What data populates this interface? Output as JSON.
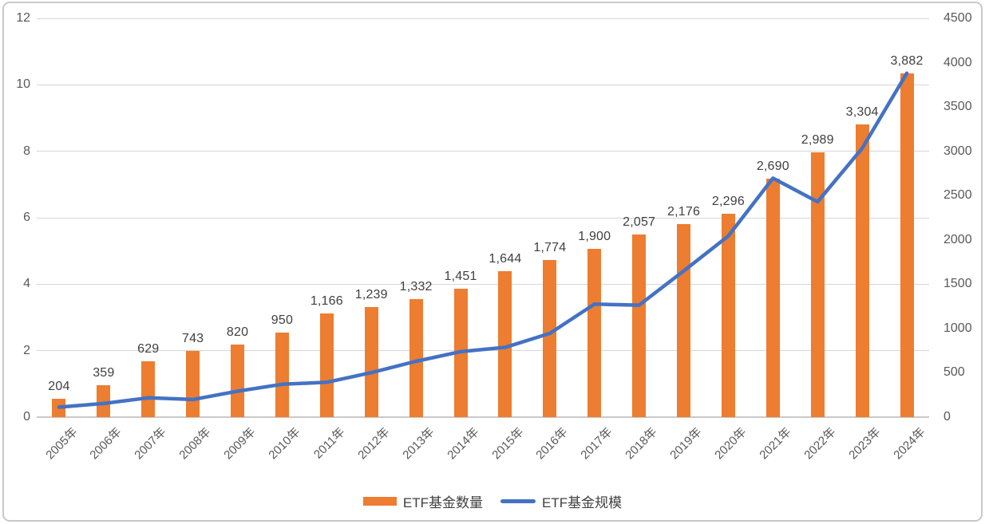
{
  "colors": {
    "bar": "#ED7D31",
    "line": "#4472C4",
    "grid": "#D6D6D6",
    "baseline": "#C9C9C9",
    "axis_text": "#595959",
    "label_text": "#404040",
    "border": "#C9C9C9",
    "background": "#FFFFFF"
  },
  "legend": {
    "bar_label": "ETF基金数量",
    "line_label": "ETF基金规模"
  },
  "chart_data": {
    "type": "combo-bar-line",
    "title": "",
    "categories": [
      "2005年",
      "2006年",
      "2007年",
      "2008年",
      "2009年",
      "2010年",
      "2011年",
      "2012年",
      "2013年",
      "2014年",
      "2015年",
      "2016年",
      "2017年",
      "2018年",
      "2019年",
      "2020年",
      "2021年",
      "2022年",
      "2023年",
      "2024年"
    ],
    "series": [
      {
        "name": "ETF基金数量",
        "type": "bar",
        "axis": "right",
        "color": "#ED7D31",
        "values": [
          204,
          359,
          629,
          743,
          820,
          950,
          1166,
          1239,
          1332,
          1451,
          1644,
          1774,
          1900,
          2057,
          2176,
          2296,
          2690,
          2989,
          3304,
          3882
        ],
        "labels": [
          "204",
          "359",
          "629",
          "743",
          "820",
          "950",
          "1,166",
          "1,239",
          "1,332",
          "1,451",
          "1,644",
          "1,774",
          "1,900",
          "2,057",
          "2,176",
          "2,296",
          "2,690",
          "2,989",
          "3,304",
          "3,882"
        ]
      },
      {
        "name": "ETF基金规模",
        "type": "line",
        "axis": "left",
        "color": "#4472C4",
        "values": [
          0.3,
          0.41,
          0.58,
          0.53,
          0.78,
          0.99,
          1.05,
          1.34,
          1.68,
          1.97,
          2.1,
          2.52,
          3.4,
          3.37,
          4.4,
          5.45,
          7.19,
          6.48,
          8.09,
          10.35
        ]
      }
    ],
    "left_axis": {
      "min": 0,
      "max": 12,
      "step": 2,
      "ticks": [
        "0",
        "2",
        "4",
        "6",
        "8",
        "10",
        "12"
      ]
    },
    "right_axis": {
      "min": 0,
      "max": 4500,
      "step": 500,
      "ticks": [
        "0",
        "500",
        "1000",
        "1500",
        "2000",
        "2500",
        "3000",
        "3500",
        "4000",
        "4500"
      ]
    },
    "grid": true,
    "data_labels": true,
    "legend_position": "bottom"
  }
}
